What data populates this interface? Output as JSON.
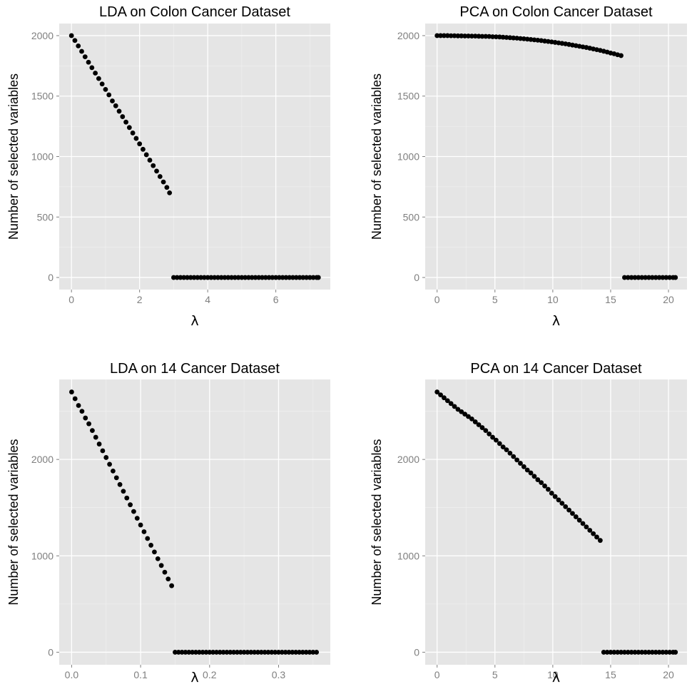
{
  "chart_data": [
    {
      "type": "scatter",
      "title": "LDA on Colon Cancer Dataset",
      "xlabel": "λ",
      "ylabel": "Number of selected variables",
      "xlim": [
        -0.36,
        7.6
      ],
      "ylim": [
        -100,
        2100
      ],
      "xticks": [
        0,
        2,
        4,
        6
      ],
      "yticks": [
        0,
        500,
        1000,
        1500,
        2000
      ],
      "grid": true,
      "series": [
        {
          "x": [
            0,
            0.1,
            0.2,
            0.3,
            0.4,
            0.5,
            0.6,
            0.7,
            0.8,
            0.9,
            1.0,
            1.1,
            1.2,
            1.3,
            1.4,
            1.5,
            1.6,
            1.7,
            1.8,
            1.9,
            2.0,
            2.1,
            2.2,
            2.3,
            2.4,
            2.5,
            2.6,
            2.7,
            2.8,
            2.88,
            3.0,
            3.1,
            3.2,
            3.3,
            3.4,
            3.5,
            3.6,
            3.7,
            3.8,
            3.9,
            4.0,
            4.1,
            4.2,
            4.3,
            4.4,
            4.5,
            4.6,
            4.7,
            4.8,
            4.9,
            5.0,
            5.1,
            5.2,
            5.3,
            5.4,
            5.5,
            5.6,
            5.7,
            5.8,
            5.9,
            6.0,
            6.1,
            6.2,
            6.3,
            6.4,
            6.5,
            6.6,
            6.7,
            6.8,
            6.9,
            7.0,
            7.1,
            7.2,
            7.25
          ],
          "y": [
            2000,
            1960,
            1915,
            1870,
            1825,
            1780,
            1735,
            1690,
            1645,
            1600,
            1555,
            1510,
            1460,
            1420,
            1375,
            1330,
            1285,
            1240,
            1195,
            1150,
            1105,
            1060,
            1015,
            970,
            925,
            880,
            835,
            790,
            745,
            700,
            0,
            0,
            0,
            0,
            0,
            0,
            0,
            0,
            0,
            0,
            0,
            0,
            0,
            0,
            0,
            0,
            0,
            0,
            0,
            0,
            0,
            0,
            0,
            0,
            0,
            0,
            0,
            0,
            0,
            0,
            0,
            0,
            0,
            0,
            0,
            0,
            0,
            0,
            0,
            0,
            0,
            0,
            0,
            0
          ]
        }
      ]
    },
    {
      "type": "scatter",
      "title": "PCA on Colon Cancer Dataset",
      "xlabel": "λ",
      "ylabel": "Number of selected variables",
      "xlim": [
        -1.03,
        21.6
      ],
      "ylim": [
        -100,
        2100
      ],
      "xticks": [
        0,
        5,
        10,
        15,
        20
      ],
      "yticks": [
        0,
        500,
        1000,
        1500,
        2000
      ],
      "grid": true,
      "series": [
        {
          "x": [
            0,
            0.3,
            0.6,
            0.9,
            1.2,
            1.5,
            1.8,
            2.1,
            2.4,
            2.7,
            3.0,
            3.3,
            3.6,
            3.9,
            4.2,
            4.5,
            4.8,
            5.1,
            5.4,
            5.7,
            6.0,
            6.3,
            6.6,
            6.9,
            7.2,
            7.5,
            7.8,
            8.1,
            8.4,
            8.7,
            9.0,
            9.3,
            9.6,
            9.9,
            10.2,
            10.5,
            10.8,
            11.1,
            11.4,
            11.7,
            12.0,
            12.3,
            12.6,
            12.9,
            13.2,
            13.5,
            13.8,
            14.1,
            14.4,
            14.7,
            15.0,
            15.3,
            15.6,
            15.9,
            16.2,
            16.5,
            16.8,
            17.1,
            17.4,
            17.7,
            18.0,
            18.3,
            18.6,
            18.9,
            19.2,
            19.5,
            19.8,
            20.1,
            20.4,
            20.6
          ],
          "y": [
            2000,
            2000,
            2000,
            2000,
            1999,
            1999,
            1998,
            1998,
            1997,
            1997,
            1996,
            1996,
            1995,
            1994,
            1994,
            1993,
            1991,
            1990,
            1989,
            1987,
            1985,
            1983,
            1981,
            1979,
            1976,
            1974,
            1971,
            1968,
            1965,
            1962,
            1959,
            1955,
            1952,
            1948,
            1944,
            1940,
            1936,
            1932,
            1927,
            1922,
            1917,
            1912,
            1907,
            1902,
            1896,
            1890,
            1884,
            1878,
            1871,
            1864,
            1856,
            1850,
            1842,
            1835,
            0,
            0,
            0,
            0,
            0,
            0,
            0,
            0,
            0,
            0,
            0,
            0,
            0,
            0,
            0,
            0
          ]
        }
      ]
    },
    {
      "type": "scatter",
      "title": "LDA on 14 Cancer Dataset",
      "xlabel": "λ",
      "ylabel": "Number of selected variables",
      "xlim": [
        -0.018,
        0.375
      ],
      "ylim": [
        -130,
        2830
      ],
      "xticks": [
        0.0,
        0.1,
        0.2,
        0.3
      ],
      "xticklabels": [
        "0.0",
        "0.1",
        "0.2",
        "0.3"
      ],
      "yticks": [
        0,
        1000,
        2000
      ],
      "grid": true,
      "series": [
        {
          "x": [
            0,
            0.005,
            0.01,
            0.015,
            0.02,
            0.025,
            0.03,
            0.035,
            0.04,
            0.045,
            0.05,
            0.055,
            0.06,
            0.065,
            0.07,
            0.075,
            0.08,
            0.085,
            0.09,
            0.095,
            0.1,
            0.105,
            0.11,
            0.115,
            0.12,
            0.125,
            0.13,
            0.135,
            0.14,
            0.145,
            0.15,
            0.155,
            0.16,
            0.165,
            0.17,
            0.175,
            0.18,
            0.185,
            0.19,
            0.195,
            0.2,
            0.205,
            0.21,
            0.215,
            0.22,
            0.225,
            0.23,
            0.235,
            0.24,
            0.245,
            0.25,
            0.255,
            0.26,
            0.265,
            0.27,
            0.275,
            0.28,
            0.285,
            0.29,
            0.295,
            0.3,
            0.305,
            0.31,
            0.315,
            0.32,
            0.325,
            0.33,
            0.335,
            0.34,
            0.345,
            0.35,
            0.355
          ],
          "y": [
            2700,
            2630,
            2560,
            2500,
            2430,
            2370,
            2300,
            2230,
            2160,
            2090,
            2020,
            1950,
            1880,
            1810,
            1740,
            1670,
            1600,
            1530,
            1460,
            1390,
            1320,
            1250,
            1180,
            1110,
            1040,
            970,
            900,
            830,
            760,
            690,
            0,
            0,
            0,
            0,
            0,
            0,
            0,
            0,
            0,
            0,
            0,
            0,
            0,
            0,
            0,
            0,
            0,
            0,
            0,
            0,
            0,
            0,
            0,
            0,
            0,
            0,
            0,
            0,
            0,
            0,
            0,
            0,
            0,
            0,
            0,
            0,
            0,
            0,
            0,
            0,
            0,
            0
          ]
        }
      ]
    },
    {
      "type": "scatter",
      "title": "PCA on 14 Cancer Dataset",
      "xlabel": "λ",
      "ylabel": "Number of selected variables",
      "xlim": [
        -1.03,
        21.6
      ],
      "ylim": [
        -130,
        2830
      ],
      "xticks": [
        0,
        5,
        10,
        15,
        20
      ],
      "yticks": [
        0,
        1000,
        2000
      ],
      "grid": true,
      "series": [
        {
          "x": [
            0,
            0.3,
            0.6,
            0.9,
            1.2,
            1.5,
            1.8,
            2.1,
            2.4,
            2.7,
            3.0,
            3.3,
            3.6,
            3.9,
            4.2,
            4.5,
            4.8,
            5.1,
            5.4,
            5.7,
            6.0,
            6.3,
            6.6,
            6.9,
            7.2,
            7.5,
            7.8,
            8.1,
            8.4,
            8.7,
            9.0,
            9.3,
            9.6,
            9.9,
            10.2,
            10.5,
            10.8,
            11.1,
            11.4,
            11.7,
            12.0,
            12.3,
            12.6,
            12.9,
            13.2,
            13.5,
            13.8,
            14.1,
            14.4,
            14.7,
            15.0,
            15.3,
            15.6,
            15.9,
            16.2,
            16.5,
            16.8,
            17.1,
            17.4,
            17.7,
            18.0,
            18.3,
            18.6,
            18.9,
            19.2,
            19.5,
            19.8,
            20.1,
            20.4,
            20.6
          ],
          "y": [
            2700,
            2670,
            2640,
            2610,
            2580,
            2550,
            2520,
            2495,
            2470,
            2445,
            2420,
            2390,
            2360,
            2330,
            2300,
            2265,
            2230,
            2200,
            2165,
            2130,
            2100,
            2065,
            2030,
            1995,
            1960,
            1925,
            1890,
            1860,
            1825,
            1790,
            1760,
            1725,
            1690,
            1650,
            1615,
            1580,
            1545,
            1510,
            1475,
            1440,
            1405,
            1370,
            1335,
            1300,
            1265,
            1230,
            1195,
            1160,
            0,
            0,
            0,
            0,
            0,
            0,
            0,
            0,
            0,
            0,
            0,
            0,
            0,
            0,
            0,
            0,
            0,
            0,
            0,
            0,
            0,
            0
          ]
        }
      ]
    }
  ]
}
